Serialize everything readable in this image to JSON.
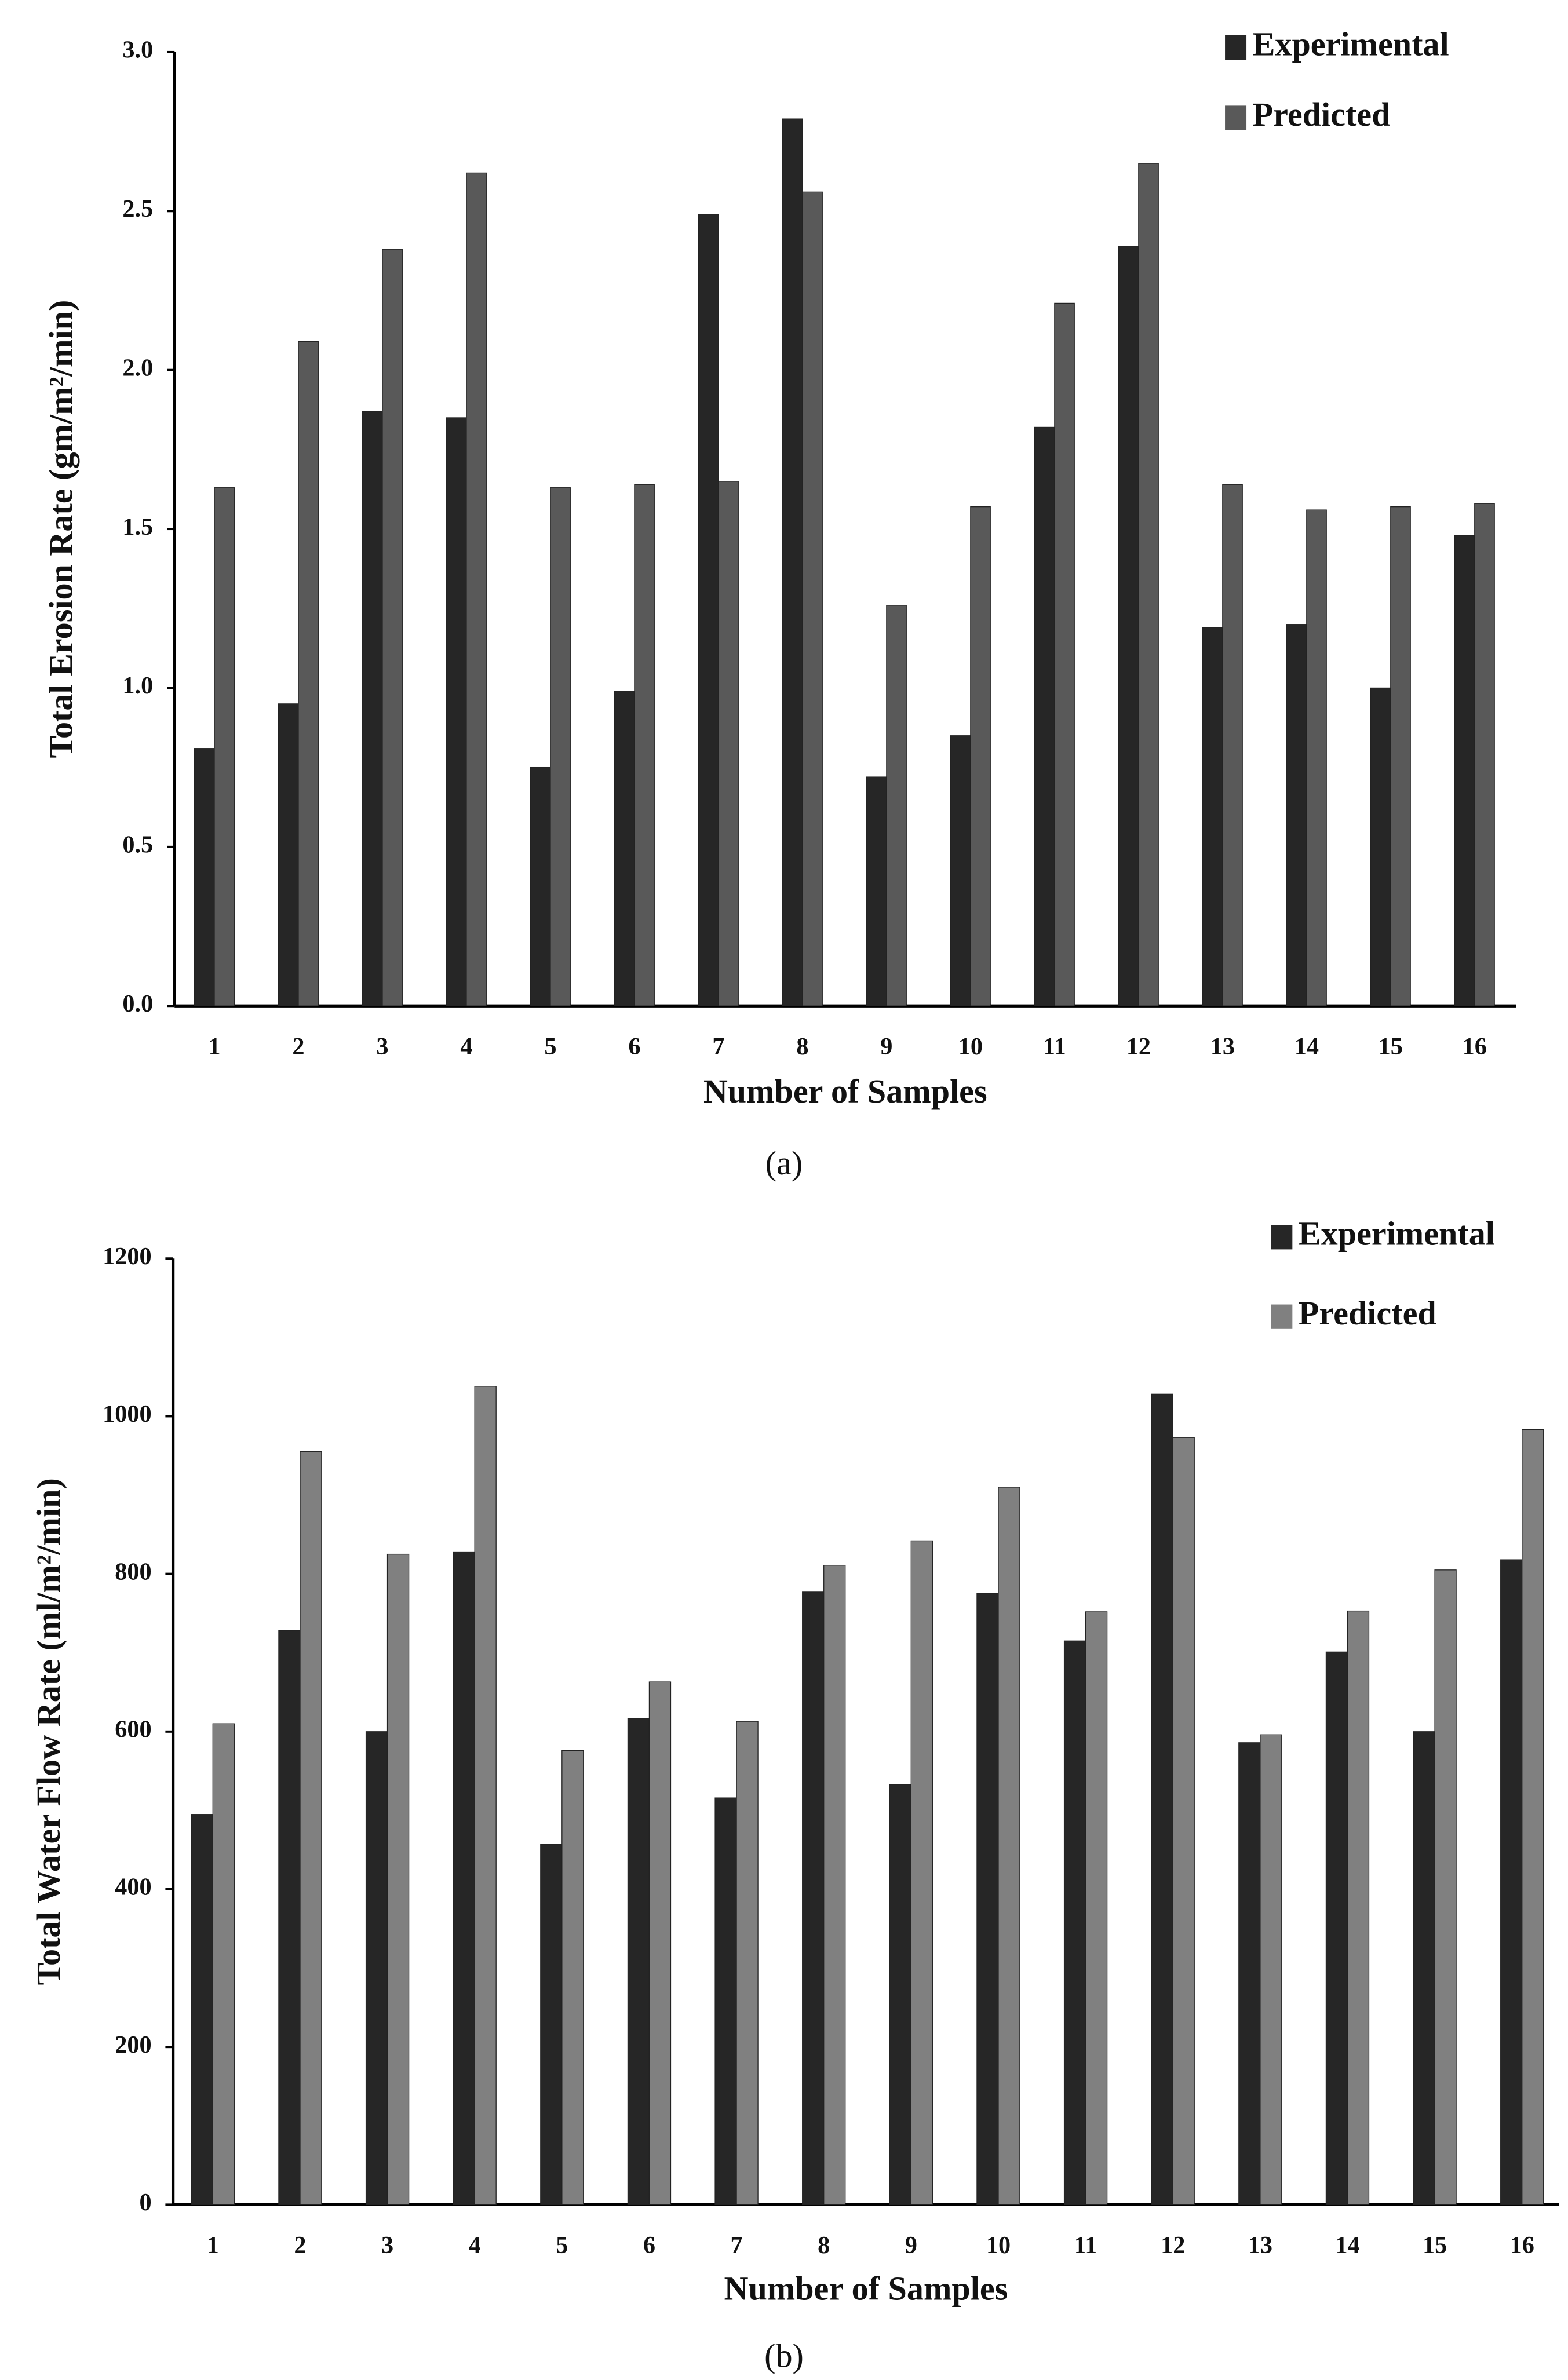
{
  "chart_data": [
    {
      "type": "bar",
      "caption": "(a)",
      "x_label": "Number of Samples",
      "y_label": "Total Erosion Rate (gm/m²/min)",
      "categories": [
        "1",
        "2",
        "3",
        "4",
        "5",
        "6",
        "7",
        "8",
        "9",
        "10",
        "11",
        "12",
        "13",
        "14",
        "15",
        "16"
      ],
      "series": [
        {
          "name": "Experimental",
          "color": "#262626",
          "values": [
            0.81,
            0.95,
            1.87,
            1.85,
            0.75,
            0.99,
            2.49,
            2.79,
            0.72,
            0.85,
            1.82,
            2.39,
            1.19,
            1.2,
            1.0,
            1.48
          ]
        },
        {
          "name": "Predicted",
          "color": "#595959",
          "values": [
            1.63,
            2.09,
            2.38,
            2.62,
            1.63,
            1.64,
            1.65,
            2.56,
            1.26,
            1.57,
            2.21,
            2.65,
            1.64,
            1.56,
            1.57,
            1.58
          ]
        }
      ],
      "ylim": [
        0,
        3
      ],
      "yticks": [
        {
          "value": 0,
          "label": "0.0"
        },
        0.5,
        {
          "value": 1,
          "label": "1.0"
        },
        1.5,
        {
          "value": 2,
          "label": "2.0"
        },
        2.5,
        {
          "value": 3,
          "label": "3.0"
        }
      ],
      "grid": false,
      "legend": "top-right"
    },
    {
      "type": "bar",
      "caption": "(b)",
      "x_label": "Number of Samples",
      "y_label": "Total Water Flow Rate (ml/m²/min)",
      "categories": [
        "1",
        "2",
        "3",
        "4",
        "5",
        "6",
        "7",
        "8",
        "9",
        "10",
        "11",
        "12",
        "13",
        "14",
        "15",
        "16"
      ],
      "series": [
        {
          "name": "Experimental",
          "color": "#262626",
          "values": [
            495,
            728,
            600,
            828,
            457,
            617,
            516,
            777,
            533,
            775,
            715,
            1028,
            586,
            701,
            600,
            818
          ]
        },
        {
          "name": "Predicted",
          "color": "#808080",
          "values": [
            610,
            955,
            825,
            1038,
            576,
            663,
            613,
            811,
            842,
            910,
            752,
            973,
            596,
            753,
            805,
            983
          ]
        }
      ],
      "ylim": [
        0,
        1200
      ],
      "yticks": [
        0,
        200,
        400,
        600,
        800,
        1000,
        1200
      ],
      "grid": false,
      "legend": "top-right"
    }
  ]
}
